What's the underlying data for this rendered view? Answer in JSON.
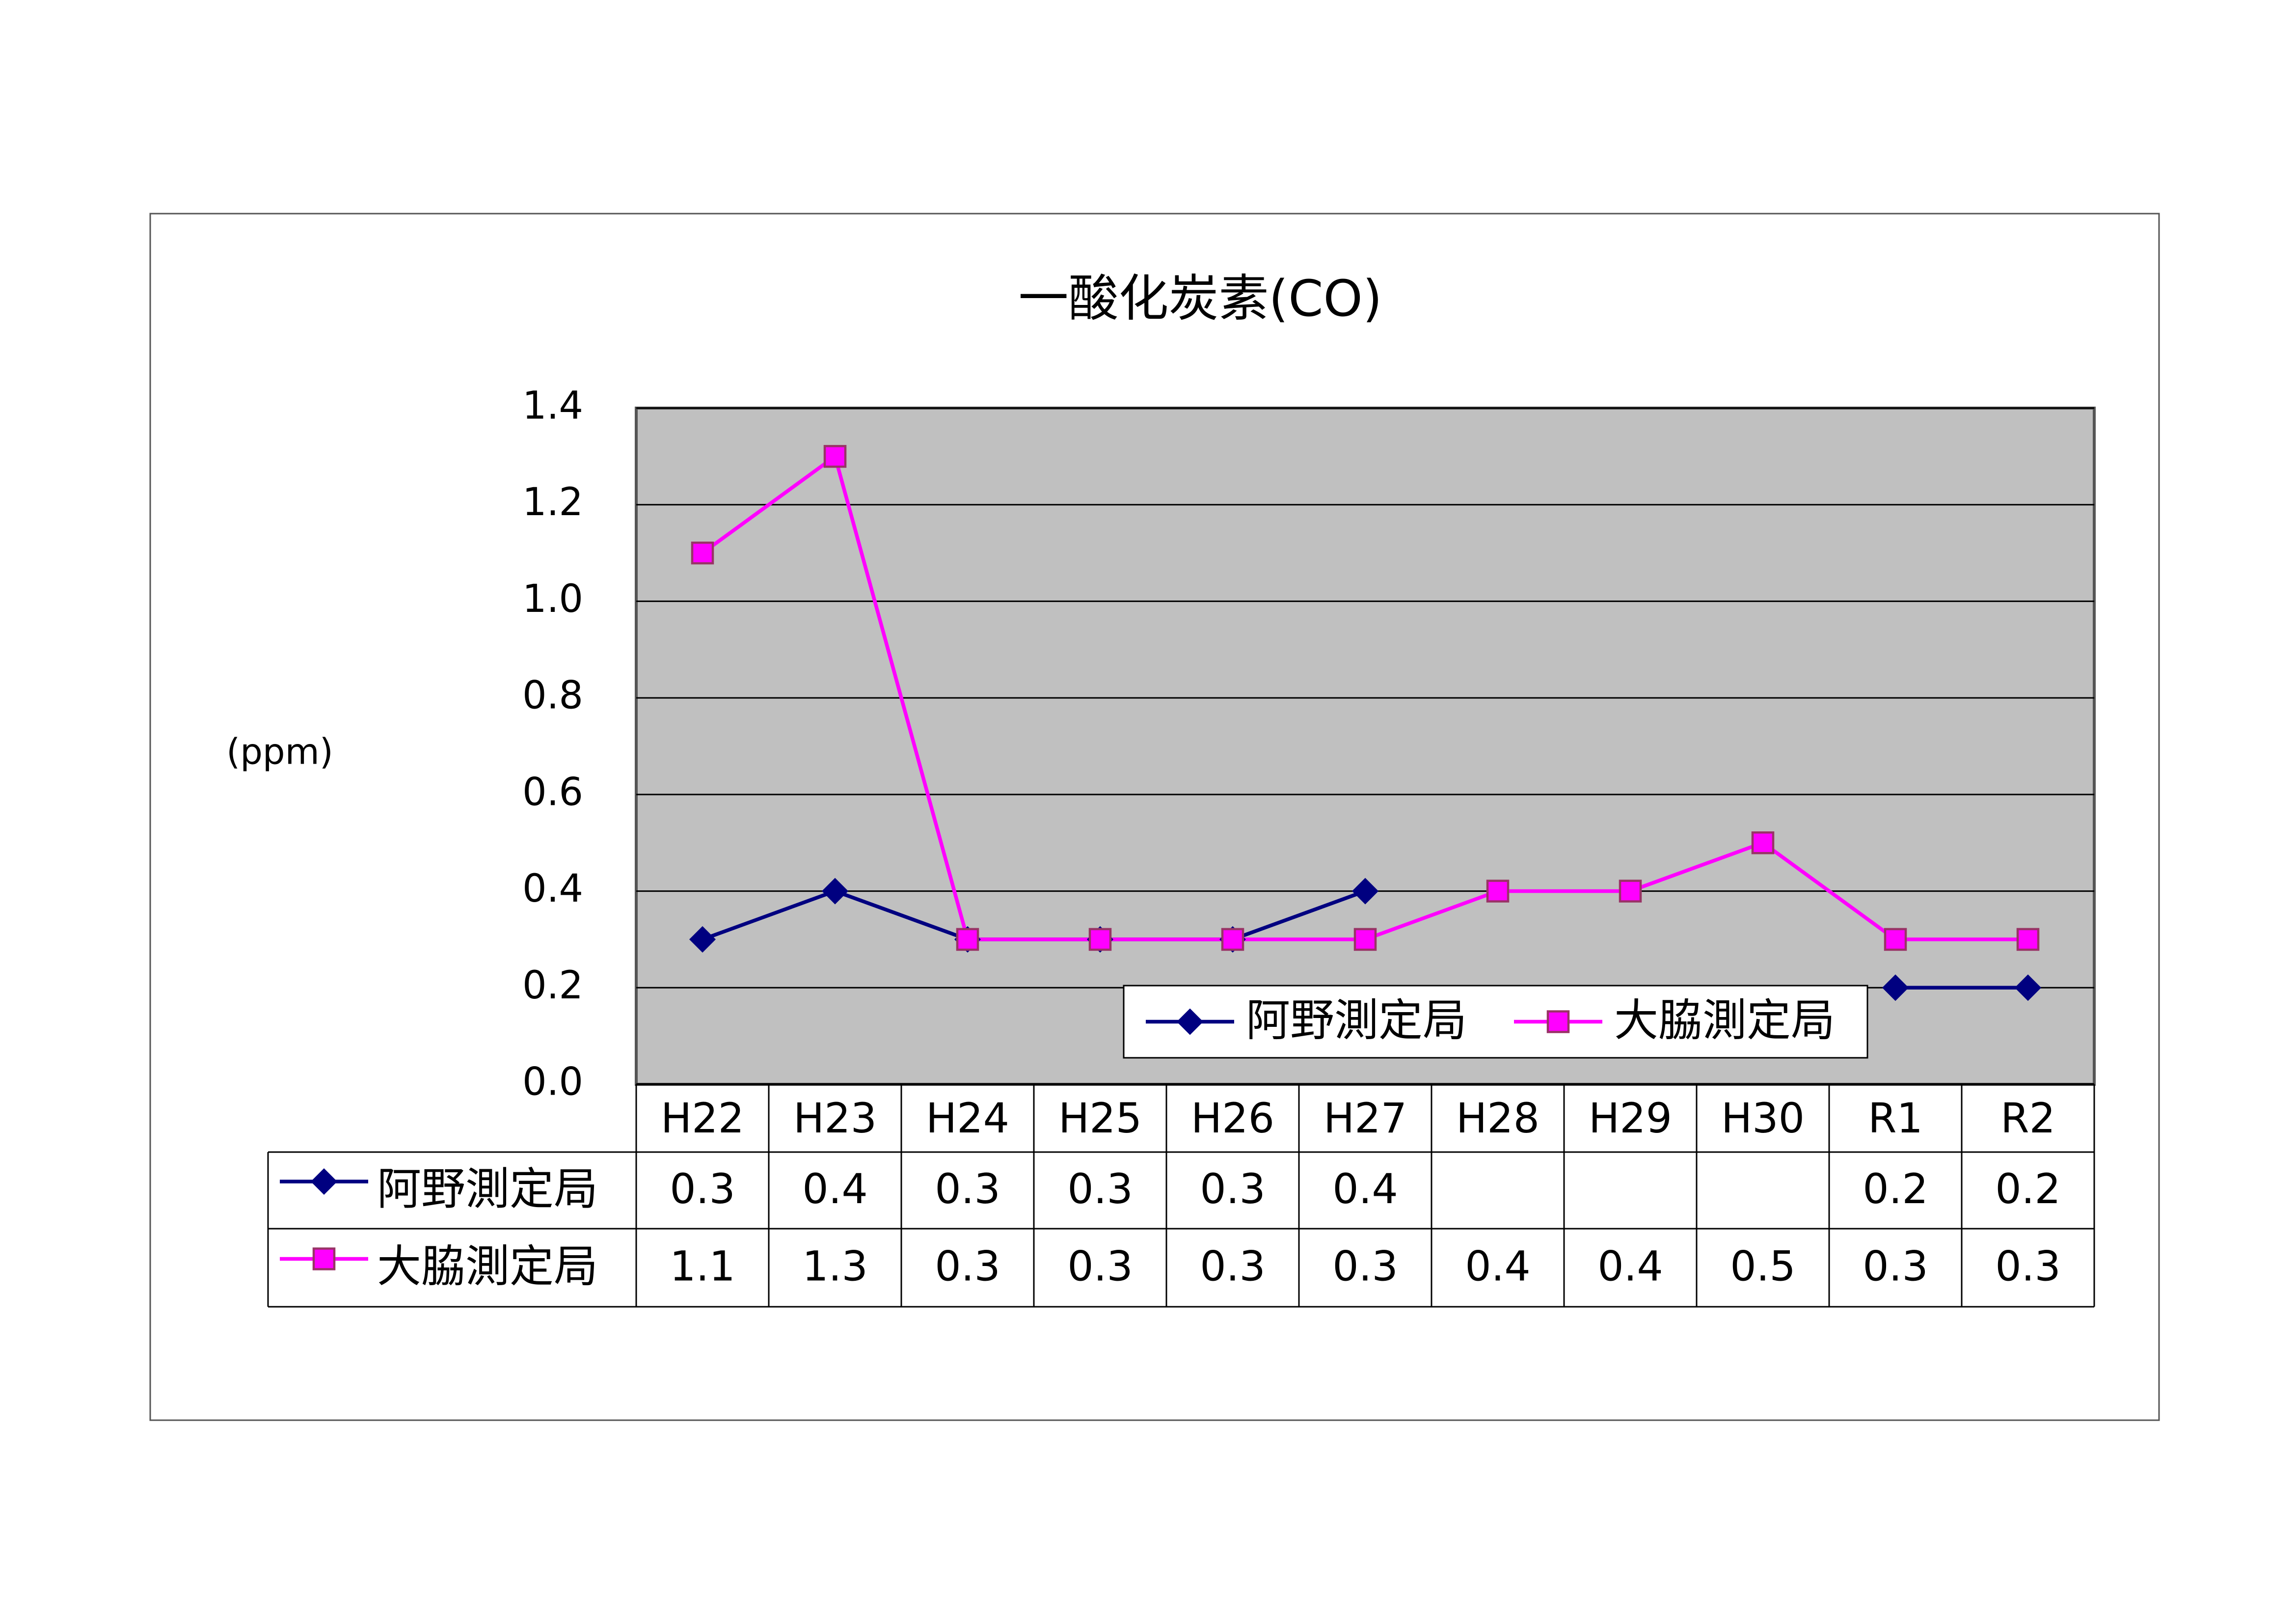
{
  "chart_data": {
    "type": "line",
    "title": "一酸化炭素(CO)",
    "y_label": "(ppm)",
    "categories": [
      "H22",
      "H23",
      "H24",
      "H25",
      "H26",
      "H27",
      "H28",
      "H29",
      "H30",
      "R1",
      "R2"
    ],
    "series": [
      {
        "name": "阿野測定局",
        "color": "#000080",
        "marker": "diamond",
        "values": [
          0.3,
          0.4,
          0.3,
          0.3,
          0.3,
          0.4,
          null,
          null,
          null,
          0.2,
          0.2
        ]
      },
      {
        "name": "大脇測定局",
        "color": "#ff00ff",
        "marker": "square",
        "values": [
          1.1,
          1.3,
          0.3,
          0.3,
          0.3,
          0.3,
          0.4,
          0.4,
          0.5,
          0.3,
          0.3
        ]
      }
    ],
    "ylim": [
      0,
      1.4
    ],
    "yticks": [
      {
        "value": 0,
        "label": "0.0"
      },
      0.2,
      0.4,
      0.6,
      0.8,
      {
        "value": 1,
        "label": "1.0"
      },
      1.2,
      1.4
    ],
    "grid": true,
    "legend": "lower-right",
    "plot_background": "#c0c0c0",
    "data_table": true
  }
}
